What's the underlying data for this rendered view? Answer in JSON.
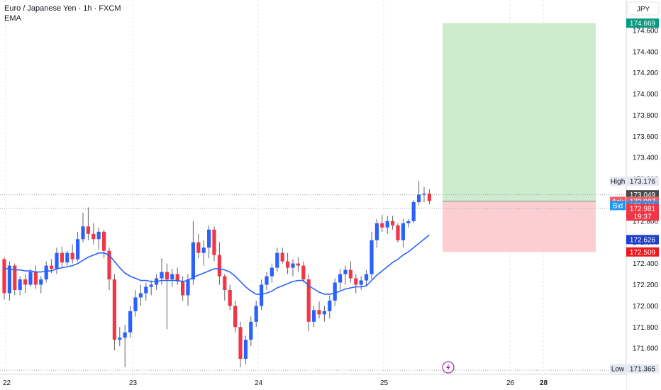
{
  "chart_data": {
    "type": "candlestick",
    "title": "Euro / Japanese Yen · 1h · FXCM",
    "indicator": "EMA",
    "currency": "JPY",
    "x_ticks": [
      "22",
      "23",
      "24",
      "25",
      "26",
      "28"
    ],
    "y_ticks": [
      171.6,
      171.8,
      172.0,
      172.2,
      172.4,
      172.6,
      172.8,
      173.0,
      173.2,
      173.4,
      173.6,
      173.8,
      174.0,
      174.2,
      174.4,
      174.6
    ],
    "y_tick_labels": [
      "171.600",
      "171.800",
      "172.000",
      "172.200",
      "172.400",
      "172.600",
      "172.800",
      "173.000",
      "173.200",
      "173.400",
      "173.600",
      "173.800",
      "174.000",
      "174.200",
      "174.400",
      "174.600"
    ],
    "y_range": [
      171.38,
      174.7
    ],
    "price_tags": [
      {
        "label": "",
        "value": "174.669",
        "price": 174.669,
        "color": "#089981",
        "text_color": "#ffffff"
      },
      {
        "label": "High",
        "value": "173.176",
        "price": 173.176,
        "color": "#e6e9f2",
        "text_color": "#131722"
      },
      {
        "label": "",
        "value": "173.049",
        "price": 173.049,
        "color": "#4a4a4a",
        "text_color": "#ffffff"
      },
      {
        "label": "Ask",
        "value": "172.987",
        "price": 172.987,
        "color": "#e8616b",
        "text_color": "#ffffff"
      },
      {
        "label": "Bid",
        "value": "172.981",
        "price": 172.947,
        "color": "#2196f3",
        "text_color": "#ffffff"
      },
      {
        "label": "",
        "value": "172.626",
        "price": 172.626,
        "color": "#1e3fc9",
        "text_color": "#ffffff"
      },
      {
        "label": "",
        "value": "172.509",
        "price": 172.509,
        "color": "#f0181f",
        "text_color": "#ffffff"
      },
      {
        "label": "Low",
        "value": "171.365",
        "price": 171.365,
        "color": "#e6e9f2",
        "text_color": "#131722"
      }
    ],
    "current_price": {
      "value": "172.981",
      "countdown": "19:37",
      "price": 172.981,
      "color": "#f23645"
    },
    "position": {
      "entry": 172.987,
      "target": 174.669,
      "stop": 172.509
    },
    "candles": [
      [
        172.44,
        172.46,
        172.06,
        172.12
      ],
      [
        172.12,
        172.42,
        172.05,
        172.38
      ],
      [
        172.38,
        172.4,
        172.1,
        172.15
      ],
      [
        172.15,
        172.28,
        172.1,
        172.25
      ],
      [
        172.25,
        172.3,
        172.12,
        172.2
      ],
      [
        172.2,
        172.35,
        172.18,
        172.32
      ],
      [
        172.32,
        172.38,
        172.16,
        172.2
      ],
      [
        172.2,
        172.28,
        172.12,
        172.25
      ],
      [
        172.25,
        172.42,
        172.22,
        172.38
      ],
      [
        172.38,
        172.44,
        172.31,
        172.35
      ],
      [
        172.35,
        172.55,
        172.3,
        172.5
      ],
      [
        172.5,
        172.56,
        172.37,
        172.41
      ],
      [
        172.41,
        172.52,
        172.38,
        172.5
      ],
      [
        172.5,
        172.58,
        172.4,
        172.44
      ],
      [
        172.44,
        172.7,
        172.42,
        172.63
      ],
      [
        172.63,
        172.88,
        172.6,
        172.75
      ],
      [
        172.75,
        172.93,
        172.62,
        172.68
      ],
      [
        172.68,
        172.78,
        172.58,
        172.63
      ],
      [
        172.63,
        172.74,
        172.53,
        172.7
      ],
      [
        172.7,
        172.72,
        172.45,
        172.52
      ],
      [
        172.52,
        172.55,
        172.15,
        172.25
      ],
      [
        172.25,
        172.3,
        171.58,
        171.68
      ],
      [
        171.68,
        171.8,
        171.62,
        171.7
      ],
      [
        171.7,
        171.82,
        171.42,
        171.75
      ],
      [
        171.75,
        172.0,
        171.7,
        171.95
      ],
      [
        171.95,
        172.15,
        171.9,
        172.08
      ],
      [
        172.08,
        172.2,
        172.0,
        172.12
      ],
      [
        172.12,
        172.22,
        172.05,
        172.18
      ],
      [
        172.18,
        172.24,
        172.1,
        172.2
      ],
      [
        172.2,
        172.3,
        172.15,
        172.26
      ],
      [
        172.26,
        172.45,
        172.2,
        172.32
      ],
      [
        172.32,
        172.4,
        171.78,
        172.25
      ],
      [
        172.25,
        172.35,
        172.18,
        172.3
      ],
      [
        172.3,
        172.36,
        172.2,
        172.23
      ],
      [
        172.23,
        172.28,
        172.05,
        172.1
      ],
      [
        172.1,
        172.3,
        172.0,
        172.25
      ],
      [
        172.25,
        172.8,
        172.2,
        172.6
      ],
      [
        172.6,
        172.68,
        172.45,
        172.5
      ],
      [
        172.5,
        172.62,
        172.38,
        172.55
      ],
      [
        172.55,
        172.76,
        172.45,
        172.72
      ],
      [
        172.72,
        172.75,
        172.42,
        172.48
      ],
      [
        172.48,
        172.6,
        172.2,
        172.28
      ],
      [
        172.28,
        172.3,
        172.05,
        172.15
      ],
      [
        172.15,
        172.2,
        171.96,
        172.0
      ],
      [
        172.0,
        172.05,
        171.75,
        171.8
      ],
      [
        171.8,
        171.85,
        171.42,
        171.5
      ],
      [
        171.5,
        171.72,
        171.45,
        171.68
      ],
      [
        171.68,
        171.9,
        171.62,
        171.85
      ],
      [
        171.85,
        172.05,
        171.8,
        172.0
      ],
      [
        172.0,
        172.25,
        171.96,
        172.2
      ],
      [
        172.2,
        172.32,
        172.15,
        172.28
      ],
      [
        172.28,
        172.4,
        172.22,
        172.36
      ],
      [
        172.36,
        172.55,
        172.32,
        172.5
      ],
      [
        172.5,
        172.55,
        172.4,
        172.42
      ],
      [
        172.42,
        172.5,
        172.3,
        172.36
      ],
      [
        172.36,
        172.44,
        172.28,
        172.4
      ],
      [
        172.4,
        172.46,
        172.32,
        172.38
      ],
      [
        172.38,
        172.42,
        172.22,
        172.25
      ],
      [
        172.25,
        172.3,
        171.76,
        171.85
      ],
      [
        171.85,
        172.0,
        171.8,
        171.96
      ],
      [
        171.96,
        172.04,
        171.88,
        171.92
      ],
      [
        171.92,
        172.0,
        171.85,
        171.95
      ],
      [
        171.95,
        172.1,
        171.88,
        172.05
      ],
      [
        172.05,
        172.26,
        172.0,
        172.22
      ],
      [
        172.22,
        172.35,
        172.15,
        172.3
      ],
      [
        172.3,
        172.38,
        172.2,
        172.34
      ],
      [
        172.34,
        172.42,
        172.22,
        172.26
      ],
      [
        172.26,
        172.3,
        172.12,
        172.2
      ],
      [
        172.2,
        172.28,
        172.15,
        172.24
      ],
      [
        172.24,
        172.34,
        172.18,
        172.3
      ],
      [
        172.3,
        172.7,
        172.25,
        172.62
      ],
      [
        172.62,
        172.82,
        172.55,
        172.78
      ],
      [
        172.78,
        172.86,
        172.7,
        172.74
      ],
      [
        172.74,
        172.85,
        172.68,
        172.8
      ],
      [
        172.8,
        172.85,
        172.72,
        172.76
      ],
      [
        172.76,
        172.78,
        172.6,
        172.62
      ],
      [
        172.62,
        172.82,
        172.55,
        172.78
      ],
      [
        172.78,
        172.82,
        172.74,
        172.8
      ],
      [
        172.8,
        173.0,
        172.78,
        172.98
      ],
      [
        172.98,
        173.18,
        172.95,
        173.05
      ],
      [
        173.05,
        173.12,
        172.98,
        173.06
      ],
      [
        173.06,
        173.1,
        172.96,
        172.99
      ]
    ],
    "ema": [
      172.35,
      172.35,
      172.34,
      172.34,
      172.33,
      172.33,
      172.32,
      172.32,
      172.33,
      172.33,
      172.35,
      172.36,
      172.37,
      172.38,
      172.4,
      172.43,
      172.46,
      172.48,
      172.5,
      172.5,
      172.48,
      172.42,
      172.36,
      172.31,
      172.28,
      172.26,
      172.24,
      172.24,
      172.23,
      172.23,
      172.24,
      172.24,
      172.24,
      172.24,
      172.23,
      172.24,
      172.27,
      172.29,
      172.31,
      172.33,
      172.35,
      172.35,
      172.34,
      172.32,
      172.28,
      172.23,
      172.18,
      172.14,
      172.11,
      172.11,
      172.12,
      172.14,
      172.17,
      172.19,
      172.21,
      172.23,
      172.24,
      172.24,
      172.19,
      172.16,
      172.13,
      172.11,
      172.11,
      172.12,
      172.14,
      172.16,
      172.17,
      172.18,
      172.18,
      172.19,
      172.24,
      172.29,
      172.33,
      172.37,
      172.41,
      172.44,
      172.48,
      172.51,
      172.55,
      172.59,
      172.63,
      172.67
    ]
  },
  "ui": {
    "alert_icon": "lightning-icon"
  }
}
